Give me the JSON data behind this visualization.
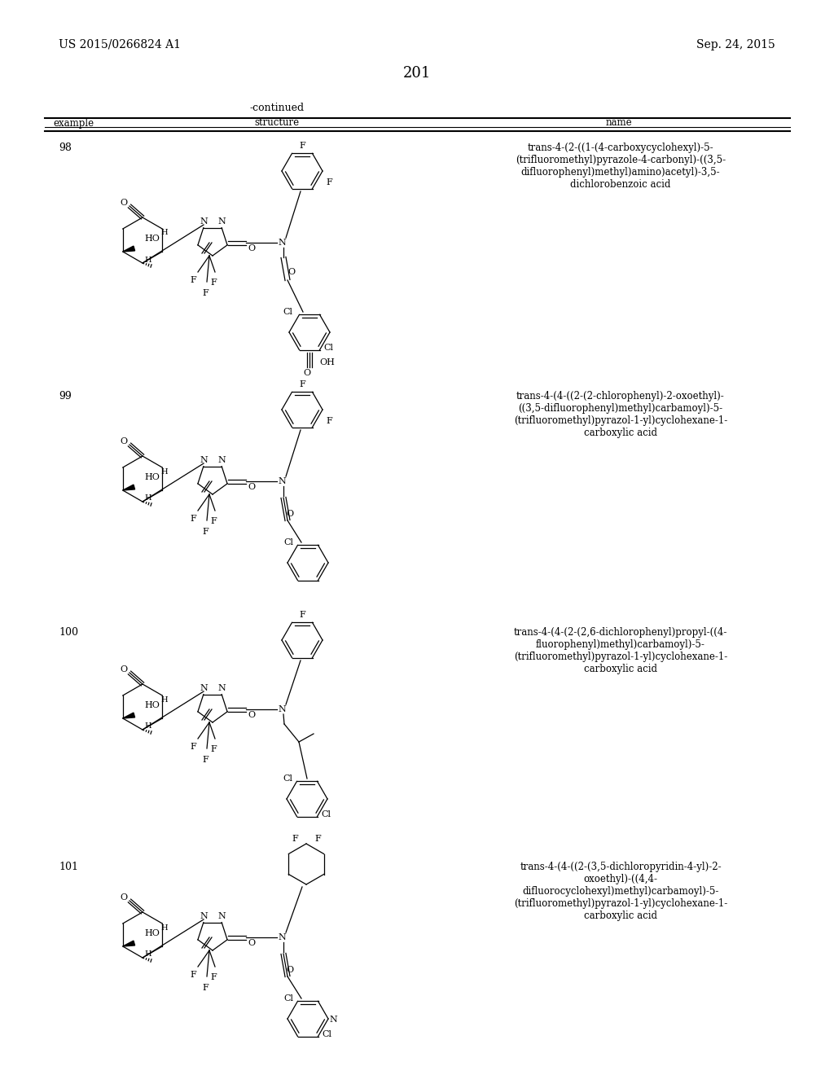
{
  "page_number": "201",
  "patent_number": "US 2015/0266824 A1",
  "patent_date": "Sep. 24, 2015",
  "continued_label": "-continued",
  "col_headers": [
    "example",
    "structure",
    "name"
  ],
  "background_color": "#ffffff",
  "text_color": "#000000",
  "rows": [
    {
      "example": "98",
      "name": "trans-4-(2-((1-(4-carboxycyclohexyl)-5-\n(trifluoromethyl)pyrazole-4-carbonyl)-((3,5-\ndifluorophenyl)methyl)amino)acetyl)-3,5-\ndichlorobenzoic acid"
    },
    {
      "example": "99",
      "name": "trans-4-(4-((2-(2-chlorophenyl)-2-oxoethyl)-\n((3,5-difluorophenyl)methyl)carbamoyl)-5-\n(trifluoromethyl)pyrazol-1-yl)cyclohexane-1-\ncarboxylic acid"
    },
    {
      "example": "100",
      "name": "trans-4-(4-(2-(2,6-dichlorophenyl)propyl-((4-\nfluorophenyl)methyl)carbamoyl)-5-\n(trifluoromethyl)pyrazol-1-yl)cyclohexane-1-\ncarboxylic acid"
    },
    {
      "example": "101",
      "name": "trans-4-(4-((2-(3,5-dichloropyridin-4-yl)-2-\noxoethyl)-((4,4-\ndifluorocyclohexyl)methyl)carbamoyl)-5-\n(trifluoromethyl)pyrazol-1-yl)cyclohexane-1-\ncarboxylic acid"
    }
  ]
}
